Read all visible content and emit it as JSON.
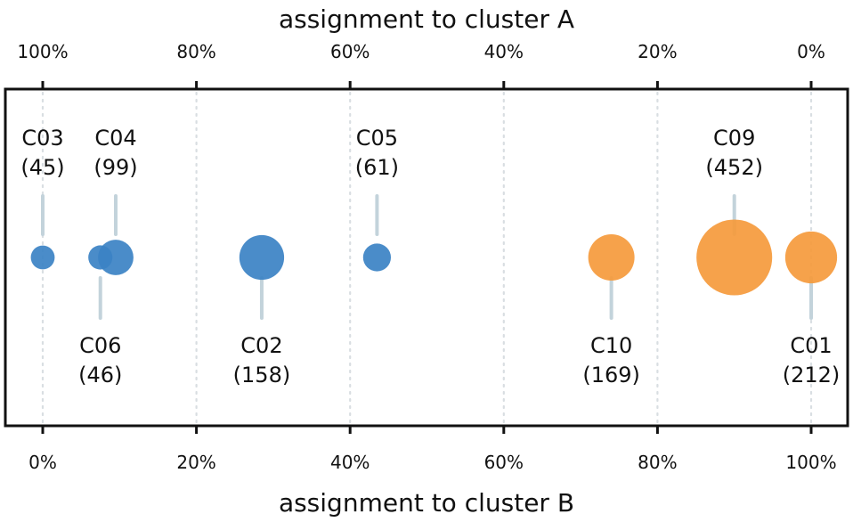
{
  "chart_data": {
    "type": "scatter",
    "top_axis": {
      "label": "assignment to cluster A",
      "ticks": [
        {
          "value": 0,
          "label": "100%"
        },
        {
          "value": 20,
          "label": "80%"
        },
        {
          "value": 40,
          "label": "60%"
        },
        {
          "value": 60,
          "label": "40%"
        },
        {
          "value": 80,
          "label": "20%"
        },
        {
          "value": 100,
          "label": "0%"
        }
      ]
    },
    "bottom_axis": {
      "label": "assignment to cluster B",
      "ticks": [
        {
          "value": 0,
          "label": "0%"
        },
        {
          "value": 20,
          "label": "20%"
        },
        {
          "value": 40,
          "label": "40%"
        },
        {
          "value": 60,
          "label": "60%"
        },
        {
          "value": 80,
          "label": "80%"
        },
        {
          "value": 100,
          "label": "100%"
        }
      ]
    },
    "xlim": [
      -5,
      105
    ],
    "grid": true,
    "colors": {
      "cluster_A": "#3b82c4",
      "cluster_B": "#f59a3c",
      "leader": "#c3d3db"
    },
    "points": [
      {
        "id": "C03",
        "count": 45,
        "count_label": "(45)",
        "x": 0,
        "cluster": "A",
        "label_side": "above"
      },
      {
        "id": "C04",
        "count": 99,
        "count_label": "(99)",
        "x": 9.5,
        "cluster": "A",
        "label_side": "above"
      },
      {
        "id": "C06",
        "count": 46,
        "count_label": "(46)",
        "x": 7.5,
        "cluster": "A",
        "label_side": "below"
      },
      {
        "id": "C02",
        "count": 158,
        "count_label": "(158)",
        "x": 28.5,
        "cluster": "A",
        "label_side": "below"
      },
      {
        "id": "C05",
        "count": 61,
        "count_label": "(61)",
        "x": 43.5,
        "cluster": "A",
        "label_side": "above"
      },
      {
        "id": "C10",
        "count": 169,
        "count_label": "(169)",
        "x": 74,
        "cluster": "B",
        "label_side": "below"
      },
      {
        "id": "C09",
        "count": 452,
        "count_label": "(452)",
        "x": 90,
        "cluster": "B",
        "label_side": "above"
      },
      {
        "id": "C01",
        "count": 212,
        "count_label": "(212)",
        "x": 100,
        "cluster": "B",
        "label_side": "below"
      }
    ]
  }
}
